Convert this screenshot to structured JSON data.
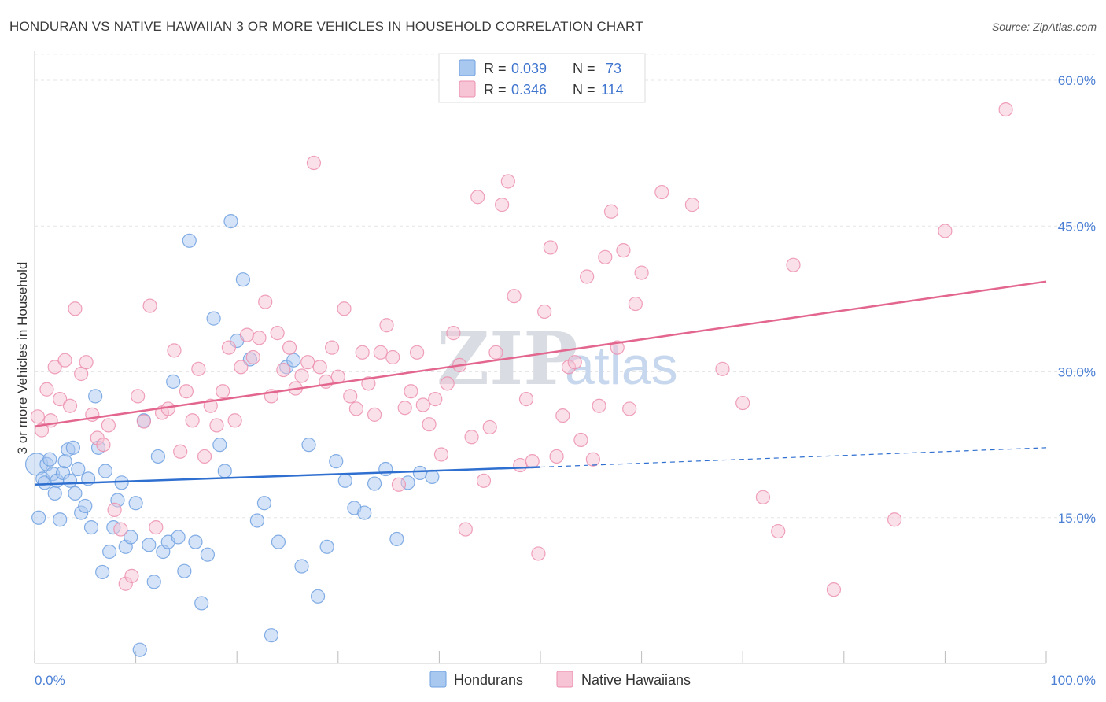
{
  "chart_data": {
    "type": "scatter",
    "title": "HONDURAN VS NATIVE HAWAIIAN 3 OR MORE VEHICLES IN HOUSEHOLD CORRELATION CHART",
    "source": "Source: ZipAtlas.com",
    "ylabel": "3 or more Vehicles in Household",
    "xlabel": "",
    "xlim": [
      0,
      100
    ],
    "ylim": [
      0,
      63
    ],
    "x_tick_labels": [
      "0.0%",
      "100.0%"
    ],
    "y_ticks": [
      15,
      30,
      45,
      60
    ],
    "y_tick_labels": [
      "15.0%",
      "30.0%",
      "45.0%",
      "60.0%"
    ],
    "watermark": {
      "zip": "ZIP",
      "atlas": "atlas"
    },
    "legend_stats": [
      {
        "series": "Hondurans",
        "r_label": "R = ",
        "r": "0.039",
        "n_label": "N = ",
        "n": "73"
      },
      {
        "series": "Native Hawaiians",
        "r_label": "R = ",
        "r": "0.346",
        "n_label": "N = ",
        "n": "114"
      }
    ],
    "series": [
      {
        "name": "Hondurans",
        "color": "#6fa0e0",
        "fill": "#a9c8f0",
        "trend_color": "#2f6fd0",
        "trend": {
          "x0": 0,
          "y0": 18.4,
          "x1": 50,
          "y1": 20.2,
          "dash_x1": 100,
          "dash_y1": 22.2
        },
        "x": [
          0.2,
          0.4,
          0.8,
          1.0,
          1.2,
          1.5,
          1.8,
          2.0,
          2.2,
          2.5,
          2.8,
          3.0,
          3.3,
          3.5,
          3.8,
          4.0,
          4.3,
          4.6,
          5.0,
          5.3,
          5.6,
          6.0,
          6.3,
          6.7,
          7.0,
          7.4,
          7.8,
          8.2,
          8.6,
          9.0,
          9.5,
          10.0,
          10.4,
          10.8,
          11.3,
          11.8,
          12.2,
          12.7,
          13.2,
          13.7,
          14.2,
          14.8,
          15.3,
          15.9,
          16.5,
          17.1,
          17.7,
          18.3,
          18.8,
          19.4,
          20.0,
          20.6,
          21.3,
          22.0,
          22.7,
          23.4,
          24.1,
          24.9,
          25.6,
          26.4,
          27.1,
          28.0,
          28.9,
          29.8,
          30.7,
          31.6,
          32.6,
          33.6,
          34.7,
          35.8,
          36.9,
          38.1,
          39.3
        ],
        "y": [
          20.5,
          15.0,
          19.0,
          18.6,
          20.5,
          21.0,
          19.5,
          17.5,
          18.8,
          14.8,
          19.6,
          20.8,
          22.0,
          18.8,
          22.2,
          17.5,
          20.0,
          15.5,
          16.2,
          19.0,
          14.0,
          27.5,
          22.2,
          9.4,
          19.8,
          11.5,
          14.0,
          16.8,
          18.6,
          12.0,
          13.0,
          16.5,
          1.4,
          25.0,
          12.2,
          8.4,
          21.3,
          11.5,
          12.5,
          29.0,
          13.0,
          9.5,
          43.5,
          12.5,
          6.2,
          11.2,
          35.5,
          22.5,
          19.8,
          45.5,
          33.2,
          39.5,
          31.3,
          14.7,
          16.5,
          2.9,
          12.5,
          30.5,
          31.2,
          10.0,
          22.5,
          6.9,
          12.0,
          20.8,
          18.8,
          16.0,
          15.5,
          18.5,
          20.0,
          12.8,
          18.6,
          19.6,
          19.2
        ]
      },
      {
        "name": "Native Hawaiians",
        "color": "#ec8fae",
        "fill": "#f6c4d4",
        "trend_color": "#e3668f",
        "trend": {
          "x0": 0,
          "y0": 24.4,
          "x1": 100,
          "y1": 39.3
        },
        "x": [
          0.3,
          0.7,
          1.2,
          1.6,
          2.0,
          2.5,
          3.0,
          3.5,
          4.0,
          4.6,
          5.1,
          5.7,
          6.2,
          6.8,
          7.3,
          7.9,
          8.5,
          9.0,
          9.6,
          10.2,
          10.8,
          11.4,
          12.0,
          12.6,
          13.2,
          13.8,
          14.4,
          15.0,
          15.6,
          16.2,
          16.8,
          17.4,
          18.0,
          18.6,
          19.2,
          19.8,
          20.4,
          21.0,
          21.6,
          22.2,
          22.8,
          23.4,
          24.0,
          24.6,
          25.2,
          25.8,
          26.4,
          27.0,
          27.6,
          28.2,
          28.8,
          29.4,
          30.0,
          30.6,
          31.2,
          31.8,
          32.4,
          33.0,
          33.6,
          34.2,
          34.8,
          35.4,
          36.0,
          36.6,
          37.2,
          37.8,
          38.4,
          39.0,
          39.6,
          40.2,
          40.8,
          41.4,
          42.0,
          42.6,
          43.2,
          43.8,
          44.4,
          45.0,
          45.6,
          46.2,
          46.8,
          47.4,
          48.0,
          48.6,
          49.2,
          49.8,
          50.4,
          51.0,
          51.6,
          52.2,
          52.8,
          53.4,
          54.0,
          54.6,
          55.2,
          55.8,
          56.4,
          57.0,
          57.6,
          58.2,
          58.8,
          59.4,
          60.0,
          62.0,
          65.0,
          68.0,
          70.0,
          72.0,
          73.5,
          75.0,
          79.0,
          85.0,
          90.0,
          96.0
        ],
        "y": [
          25.4,
          24.0,
          28.2,
          25.0,
          30.5,
          27.2,
          31.2,
          26.5,
          36.5,
          29.8,
          31.0,
          25.6,
          23.2,
          22.5,
          24.5,
          15.8,
          13.8,
          8.2,
          9.0,
          27.5,
          24.9,
          36.8,
          14.0,
          25.8,
          26.2,
          32.2,
          21.8,
          28.0,
          25.0,
          30.3,
          21.3,
          26.5,
          24.5,
          28.0,
          32.5,
          25.0,
          30.5,
          33.8,
          31.5,
          33.5,
          37.2,
          27.5,
          34.0,
          30.2,
          32.5,
          28.3,
          29.6,
          31.0,
          51.5,
          30.5,
          29.0,
          32.5,
          29.5,
          36.5,
          27.5,
          26.2,
          32.0,
          28.8,
          25.6,
          32.0,
          34.8,
          31.5,
          18.4,
          26.3,
          28.0,
          32.0,
          26.6,
          24.6,
          27.2,
          21.5,
          28.8,
          34.0,
          30.7,
          13.8,
          23.3,
          48.0,
          18.8,
          24.3,
          32.0,
          47.2,
          49.6,
          37.8,
          20.4,
          27.2,
          20.8,
          11.3,
          36.2,
          42.8,
          21.3,
          25.5,
          30.5,
          31.0,
          23.0,
          39.8,
          21.0,
          26.5,
          41.8,
          46.5,
          32.5,
          42.5,
          26.2,
          37.0,
          40.2,
          48.5,
          47.2,
          30.3,
          26.8,
          17.1,
          13.6,
          41.0,
          7.6,
          14.8,
          44.5,
          57.0
        ]
      }
    ]
  }
}
